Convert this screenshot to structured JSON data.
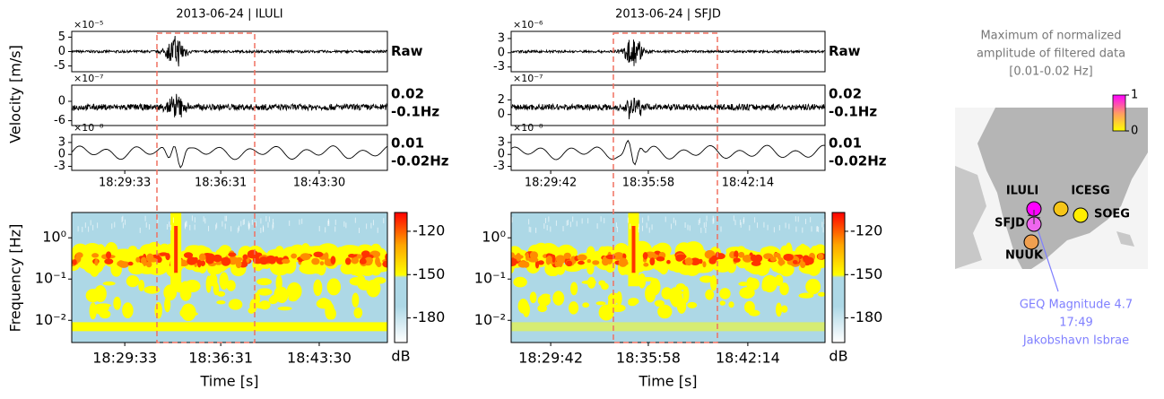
{
  "figure": {
    "velocity_label": "Velocity [m/s]",
    "frequency_label": "Frequency [Hz]",
    "panels": [
      {
        "title": "2013-06-24 | ILULI",
        "traces": [
          {
            "label": [
              "Raw"
            ],
            "scale": "×10⁻⁵",
            "ylim": [
              -7,
              7
            ],
            "yticks": [
              5,
              0,
              -5
            ]
          },
          {
            "label": [
              "0.02",
              "-0.1Hz"
            ],
            "scale": "×10⁻⁷",
            "ylim": [
              -7.5,
              5
            ],
            "yticks": [
              0,
              -6
            ]
          },
          {
            "label": [
              "0.01",
              "-0.02Hz"
            ],
            "scale": "×10⁻⁸",
            "ylim": [
              -4,
              5
            ],
            "yticks": [
              3,
              0,
              -3
            ]
          }
        ],
        "time_ticks": [
          "18:29:33",
          "18:36:31",
          "18:43:30"
        ],
        "spectrogram": {
          "ylim": [
            0.0029,
            4.1
          ],
          "yticks": [
            {
              "value": 1,
              "label": "10⁰"
            },
            {
              "value": 0.1,
              "label": "10⁻¹"
            },
            {
              "value": 0.01,
              "label": "10⁻²"
            }
          ],
          "clim": [
            -197,
            -107
          ],
          "colorbar_ticks": [
            -120,
            -150,
            -180
          ],
          "colorbar_label": "dB"
        },
        "x_label": "Time [s]"
      },
      {
        "title": "2013-06-24 | SFJD",
        "traces": [
          {
            "label": [
              "Raw"
            ],
            "scale": "×10⁻⁶",
            "ylim": [
              -4,
              4.5
            ],
            "yticks": [
              3,
              0,
              -3
            ]
          },
          {
            "label": [
              "0.02",
              "-0.1Hz"
            ],
            "scale": "×10⁻⁷",
            "ylim": [
              -1.5,
              4
            ],
            "yticks": [
              2,
              0
            ]
          },
          {
            "label": [
              "0.01",
              "-0.02Hz"
            ],
            "scale": "×10⁻⁸",
            "ylim": [
              -4,
              5
            ],
            "yticks": [
              3,
              0,
              -3
            ]
          }
        ],
        "time_ticks": [
          "18:29:42",
          "18:35:58",
          "18:42:14"
        ],
        "spectrogram": {
          "ylim": [
            0.0029,
            4.1
          ],
          "yticks": [
            {
              "value": 1,
              "label": "10⁰"
            },
            {
              "value": 0.1,
              "label": "10⁻¹"
            },
            {
              "value": 0.01,
              "label": "10⁻²"
            }
          ],
          "clim": [
            -197,
            -107
          ],
          "colorbar_ticks": [
            -120,
            -150,
            -180
          ],
          "colorbar_label": "dB"
        },
        "x_label": "Time [s]"
      }
    ],
    "map": {
      "title": [
        "Maximum of normalized",
        "amplitude of filtered data",
        "[0.01-0.02 Hz]"
      ],
      "colorbar_lim": [
        0,
        1
      ],
      "colorbar_ticks": [
        1,
        0
      ],
      "stations": [
        "ILULI",
        "ICESG",
        "SOEG",
        "SFJD",
        "NUUK"
      ],
      "annotation": [
        "GEQ Magnitude 4.7",
        "17:49",
        "Jakobshavn Isbrae"
      ]
    }
  }
}
